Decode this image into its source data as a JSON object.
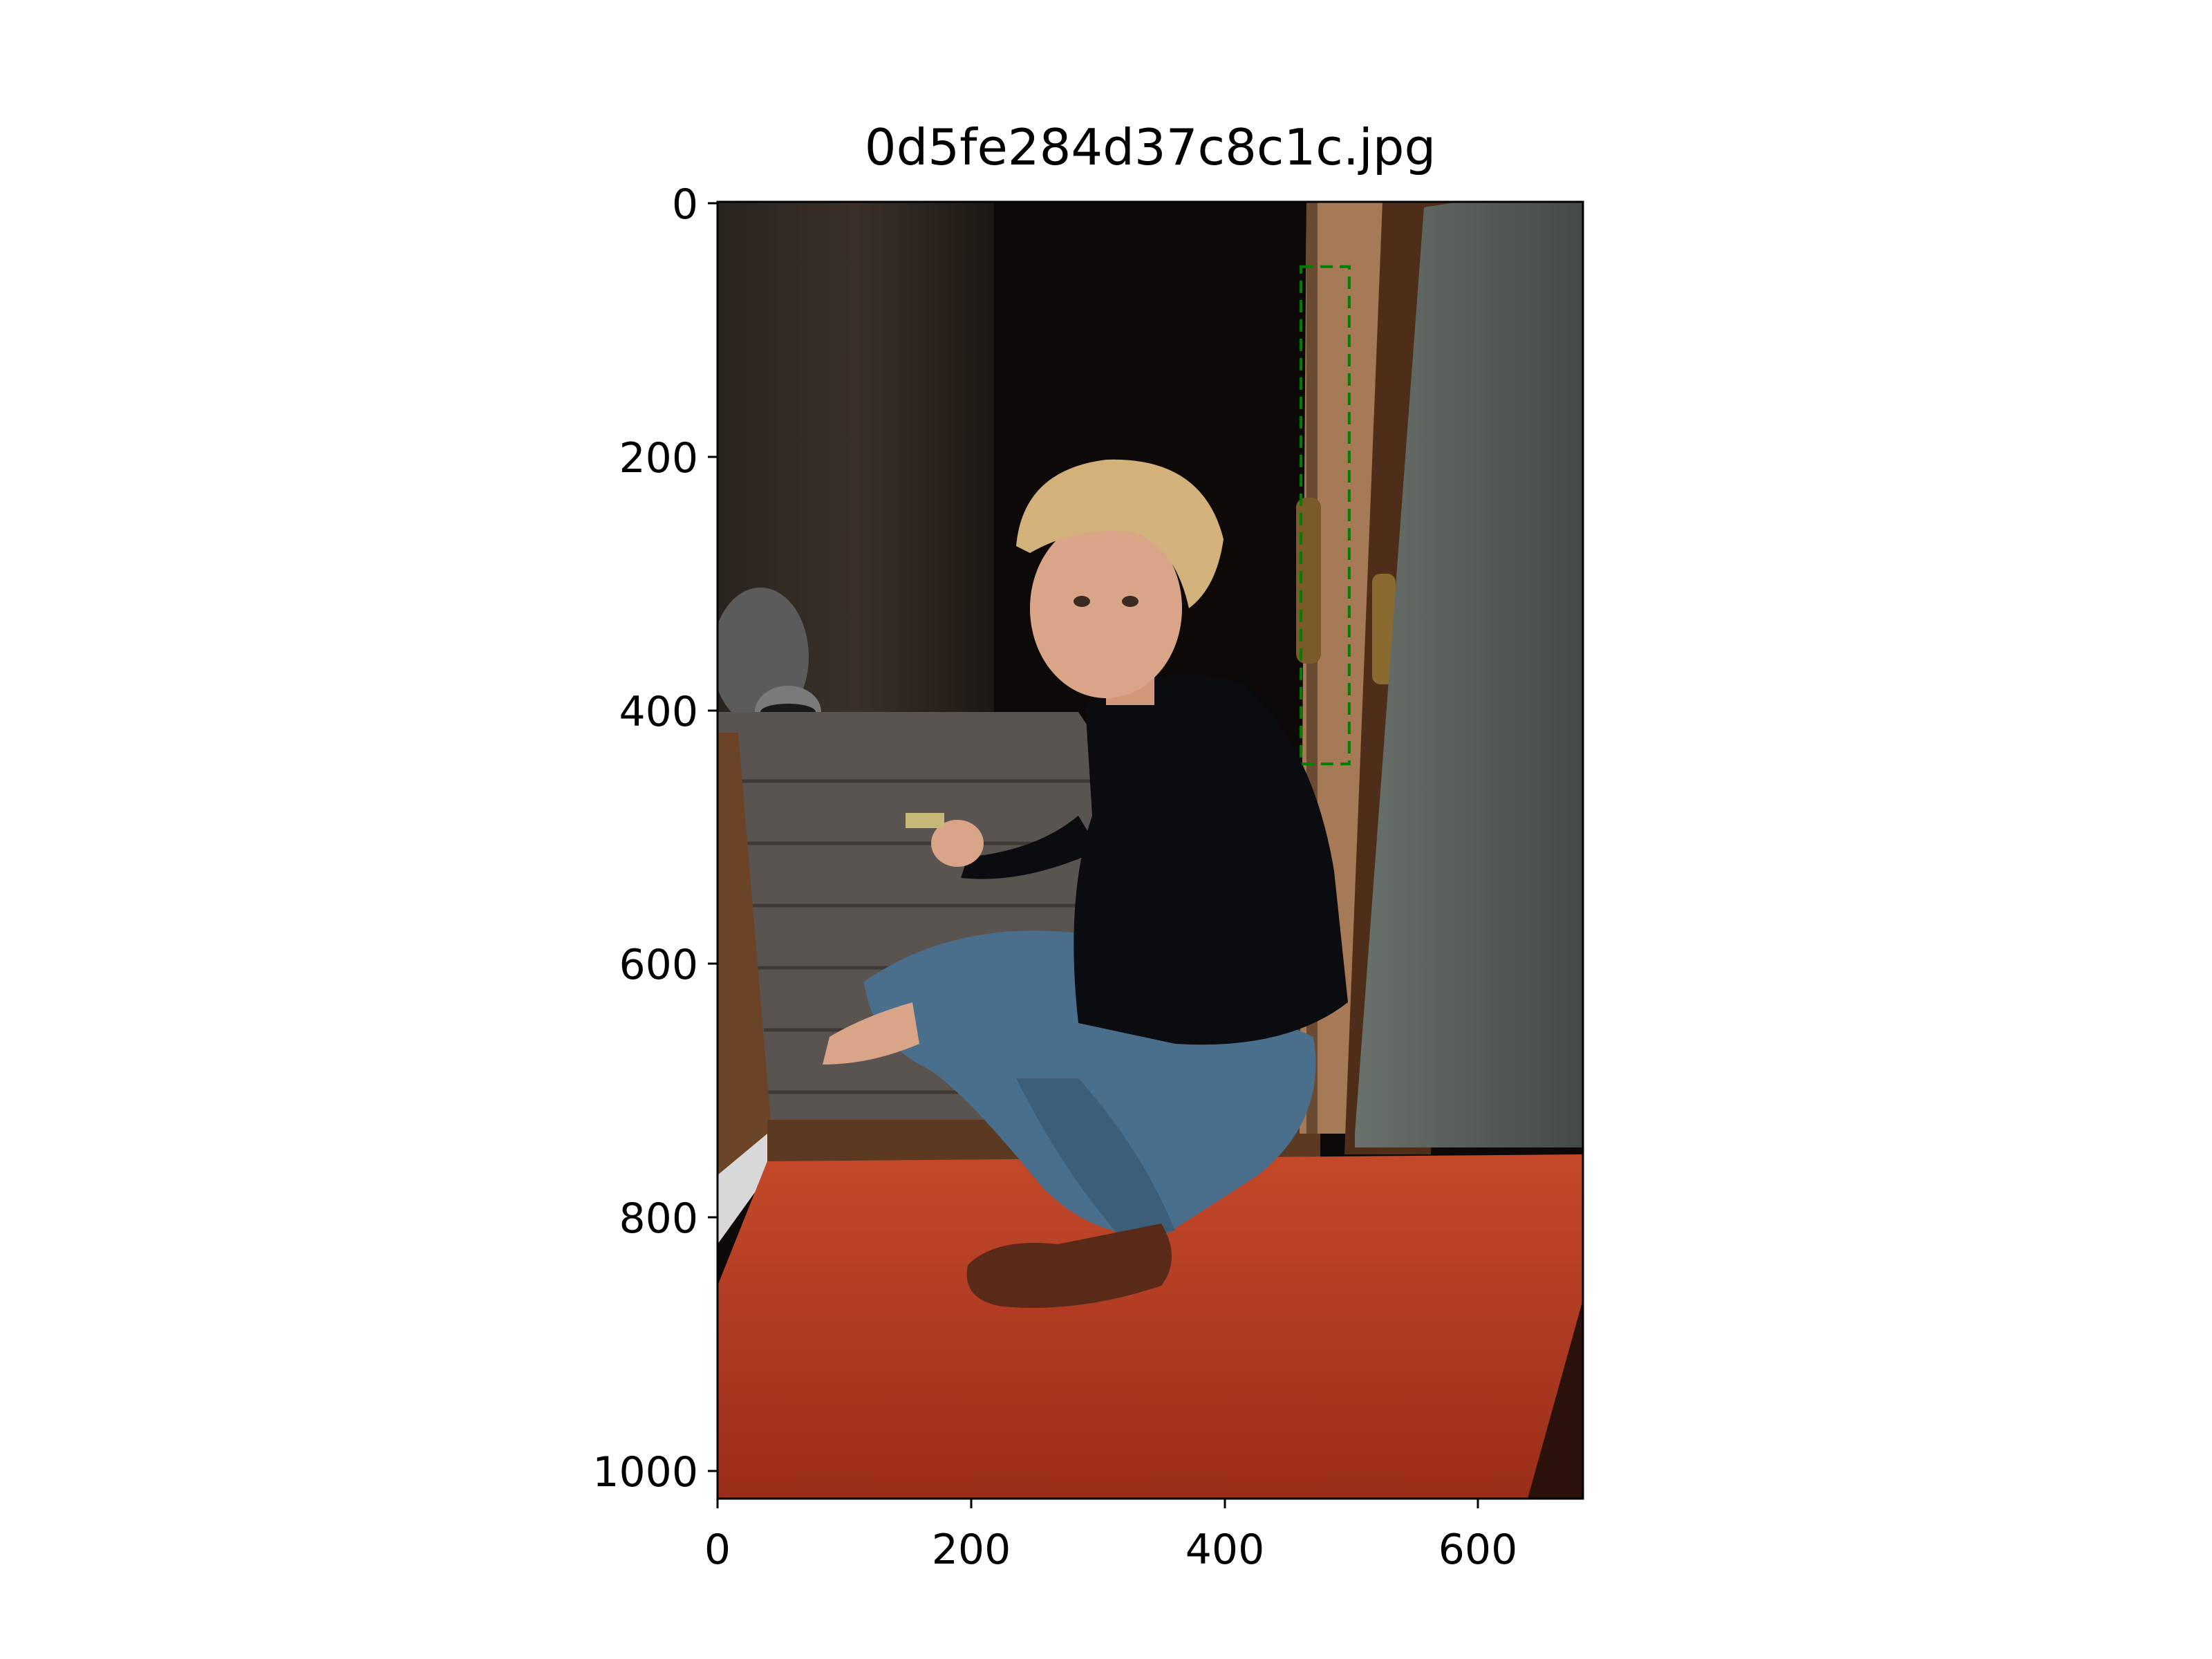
{
  "figure": {
    "title": "0d5fe284d37c8c1c.jpg",
    "x_ticks": [
      "0",
      "200",
      "400",
      "600"
    ],
    "y_ticks": [
      "0",
      "200",
      "400",
      "600",
      "800",
      "1000"
    ],
    "annotation_box": {
      "style": "dashed",
      "color": "#008000",
      "x_min": 460,
      "x_max": 498,
      "y_min": 50,
      "y_max": 442
    }
  },
  "photo": {
    "content": "man squatting in open doorway holding food toward raccoon on deck",
    "colors": {
      "night": "#0d0908",
      "carpet": "#b23a20",
      "jeans": "#4a6f8c",
      "shirt": "#0b0c10",
      "hair": "#d2b27a",
      "skin": "#d9a488",
      "door_frame": "#8a5a38",
      "screen_panel": "#4f5552",
      "deck": "#5a5450"
    }
  }
}
